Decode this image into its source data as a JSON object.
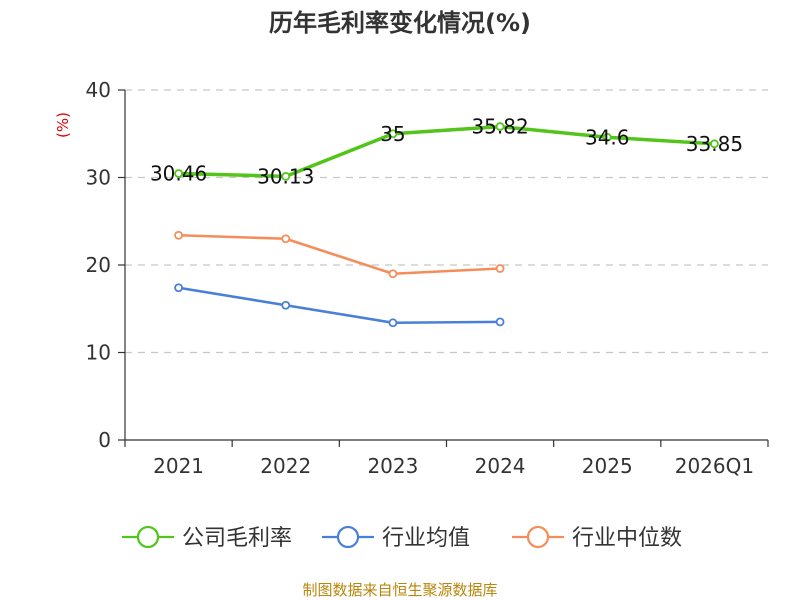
{
  "chart_data": {
    "type": "line",
    "title": "历年毛利率变化情况(%)",
    "ylabel": "(%)",
    "categories": [
      "2021",
      "2022",
      "2023",
      "2024",
      "2025",
      "2026Q1"
    ],
    "ylim": [
      0,
      40
    ],
    "yticks": [
      0,
      10,
      20,
      30,
      40
    ],
    "grid": true,
    "legend_position": "bottom",
    "series": [
      {
        "name": "公司毛利率",
        "color": "#52c41a",
        "values": [
          30.46,
          30.13,
          35,
          35.82,
          34.6,
          33.85
        ],
        "labels": [
          "30.46",
          "30.13",
          "35",
          "35.82",
          "34.6",
          "33.85"
        ]
      },
      {
        "name": "行业均值",
        "color": "#4a7fd8",
        "values": [
          17.4,
          15.4,
          13.4,
          13.5,
          null,
          null
        ]
      },
      {
        "name": "行业中位数",
        "color": "#f58d5a",
        "values": [
          23.4,
          23.0,
          19.0,
          19.6,
          null,
          null
        ]
      }
    ]
  },
  "source": "制图数据来自恒生聚源数据库"
}
